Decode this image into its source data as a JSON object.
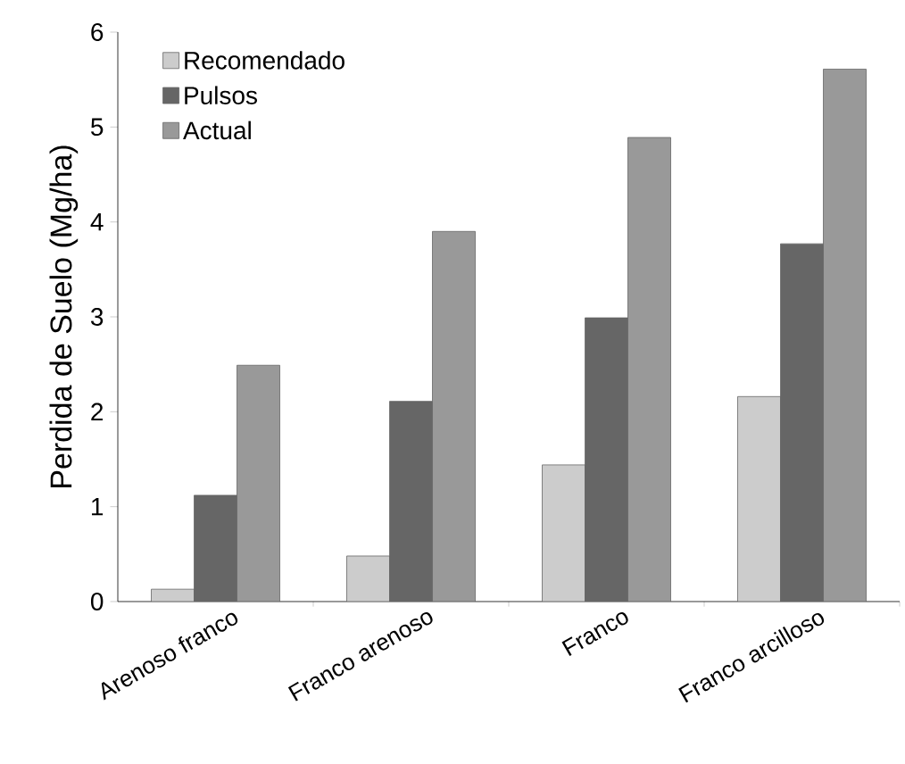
{
  "chart_data": {
    "type": "bar",
    "ylabel": "Perdida de Suelo (Mg/ha)",
    "categories": [
      "Arenoso franco",
      "Franco arenoso",
      "Franco",
      "Franco arcilloso"
    ],
    "series": [
      {
        "name": "Recomendado",
        "color": "#cccccc",
        "values": [
          0.13,
          0.48,
          1.44,
          2.16
        ]
      },
      {
        "name": "Pulsos",
        "color": "#666666",
        "values": [
          1.12,
          2.11,
          2.99,
          3.77
        ]
      },
      {
        "name": "Actual",
        "color": "#999999",
        "values": [
          2.49,
          3.9,
          4.89,
          5.61
        ]
      }
    ],
    "ylim": [
      0,
      6
    ],
    "yticks": [
      0,
      1,
      2,
      3,
      4,
      5,
      6
    ],
    "grid": false,
    "legend": "top left"
  }
}
